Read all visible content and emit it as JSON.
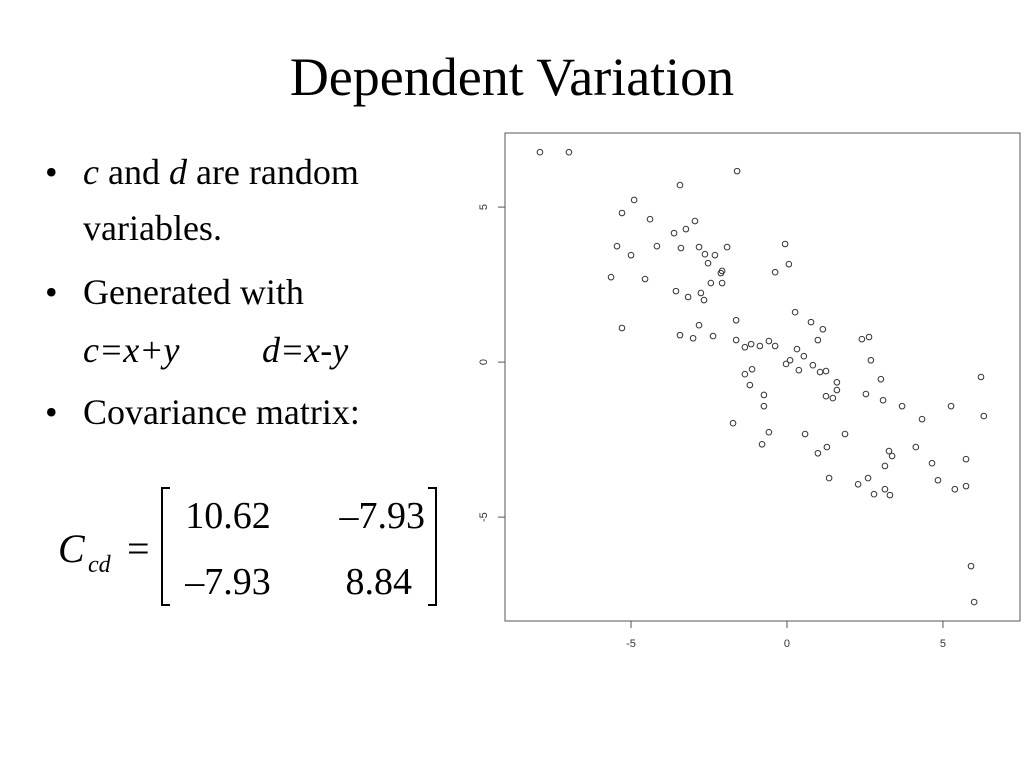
{
  "title": "Dependent Variation",
  "bullets": [
    [
      "c",
      " and ",
      "d",
      " are random",
      "variables."
    ],
    [
      "Generated with",
      "c=x+y",
      "d=x-y"
    ],
    [
      "Covariance matrix:"
    ]
  ],
  "matrix": {
    "symbol": "C",
    "subscript": "cd",
    "equals": "=",
    "rows": [
      [
        "10.62",
        "–7.93"
      ],
      [
        "–7.93",
        "8.84"
      ]
    ]
  },
  "chart_data": {
    "type": "scatter",
    "color": "#333333",
    "x": [
      -7.92,
      -6.99,
      -1.6,
      -3.43,
      -4.9,
      -5.29,
      -4.39,
      -2.95,
      -3.24,
      -3.62,
      -5.45,
      -5.0,
      -4.17,
      -3.4,
      -2.82,
      -2.63,
      -2.31,
      -2.53,
      -1.92,
      -2.08,
      -2.12,
      -5.64,
      -4.55,
      -2.44,
      -2.08,
      -3.56,
      -2.76,
      -3.17,
      -2.66,
      -0.06,
      0.06,
      -0.38,
      -5.29,
      -3.43,
      -3.01,
      -2.82,
      -2.37,
      -1.63,
      -1.63,
      -1.35,
      -1.15,
      -0.87,
      -0.58,
      -0.38,
      0.26,
      0.77,
      1.15,
      0.99,
      0.32,
      0.54,
      -0.03,
      0.1,
      0.38,
      0.83,
      1.06,
      1.25,
      2.4,
      2.63,
      2.69,
      -1.35,
      -1.12,
      -1.19,
      -0.74,
      -0.74,
      -1.73,
      -0.58,
      -0.8,
      0.58,
      0.99,
      1.28,
      1.35,
      1.6,
      1.6,
      1.47,
      1.25,
      1.86,
      2.53,
      3.01,
      3.08,
      3.69,
      4.33,
      4.13,
      3.27,
      3.37,
      3.14,
      2.28,
      2.6,
      2.79,
      3.14,
      3.3,
      4.65,
      4.84,
      5.38,
      5.26,
      5.74,
      5.74,
      6.22,
      6.31,
      5.9,
      6.0
    ],
    "values": [
      6.77,
      6.77,
      6.16,
      5.71,
      5.23,
      4.81,
      4.61,
      4.55,
      4.29,
      4.16,
      3.74,
      3.45,
      3.74,
      3.68,
      3.71,
      3.48,
      3.45,
      3.19,
      3.71,
      2.94,
      2.87,
      2.74,
      2.68,
      2.55,
      2.55,
      2.29,
      2.23,
      2.1,
      2.0,
      3.81,
      3.16,
      2.9,
      1.1,
      0.87,
      0.77,
      1.19,
      0.84,
      1.35,
      0.71,
      0.48,
      0.58,
      0.52,
      0.68,
      0.52,
      1.61,
      1.29,
      1.06,
      0.71,
      0.42,
      0.19,
      -0.06,
      0.06,
      -0.26,
      -0.1,
      -0.32,
      -0.29,
      0.74,
      0.81,
      0.06,
      -0.39,
      -0.23,
      -0.74,
      -1.06,
      -1.42,
      -1.97,
      -2.26,
      -2.65,
      -2.32,
      -2.94,
      -2.74,
      -3.74,
      -0.65,
      -0.9,
      -1.16,
      -1.1,
      -2.32,
      -1.03,
      -0.55,
      -1.23,
      -1.42,
      -1.84,
      -2.74,
      -2.87,
      -3.03,
      -3.35,
      -3.94,
      -3.74,
      -4.26,
      -4.1,
      -4.29,
      -3.26,
      -3.81,
      -4.1,
      -1.42,
      -3.13,
      -4.0,
      -0.48,
      -1.74,
      -6.58,
      -7.74
    ],
    "xlim": [
      -9.04,
      7.47
    ],
    "ylim": [
      -8.35,
      7.39
    ],
    "xticks": [
      -5,
      0,
      5
    ],
    "yticks": [
      -5,
      0,
      5
    ]
  }
}
